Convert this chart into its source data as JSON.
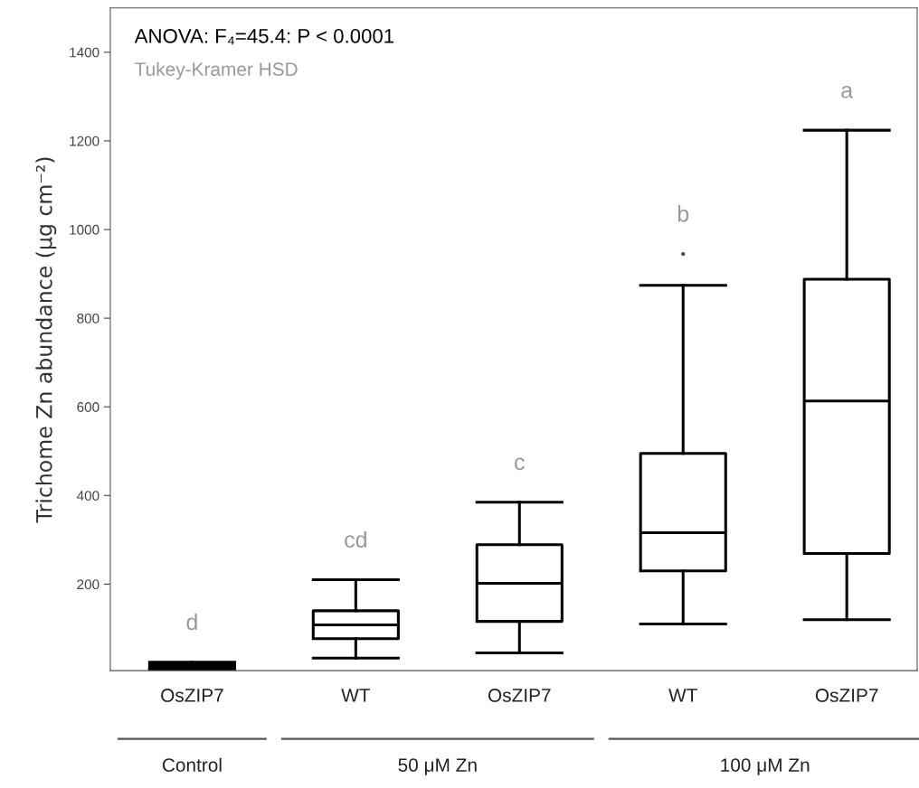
{
  "chart_data": {
    "type": "box",
    "ylabel": "Trichome Zn abundance (μg cm⁻²)",
    "categories": [
      "OsZIP7",
      "WT",
      "OsZIP7",
      "WT",
      "OsZIP7"
    ],
    "boxes": [
      {
        "low": 8,
        "q1": 10,
        "median": 15,
        "q3": 20,
        "high": 24
      },
      {
        "low": 33,
        "q1": 77,
        "median": 108,
        "q3": 140,
        "high": 210
      },
      {
        "low": 45,
        "q1": 116,
        "median": 202,
        "q3": 289,
        "high": 385
      },
      {
        "low": 110,
        "q1": 230,
        "median": 316,
        "q3": 495,
        "high": 874,
        "outliers": [
          945
        ]
      },
      {
        "low": 120,
        "q1": 269,
        "median": 613,
        "q3": 888,
        "high": 1224
      }
    ],
    "ylim": [
      5,
      1500
    ],
    "yticks": [
      200,
      400,
      600,
      800,
      1000,
      1200,
      1400
    ],
    "grid": false,
    "legend": false,
    "annotations": [
      "ANOVA: F₄=45.4: P < 0.0001",
      "Tukey-Kramer HSD",
      "Control",
      "50 μM Zn",
      "100 μM Zn",
      "d",
      "cd",
      "c",
      "b",
      "a"
    ]
  }
}
